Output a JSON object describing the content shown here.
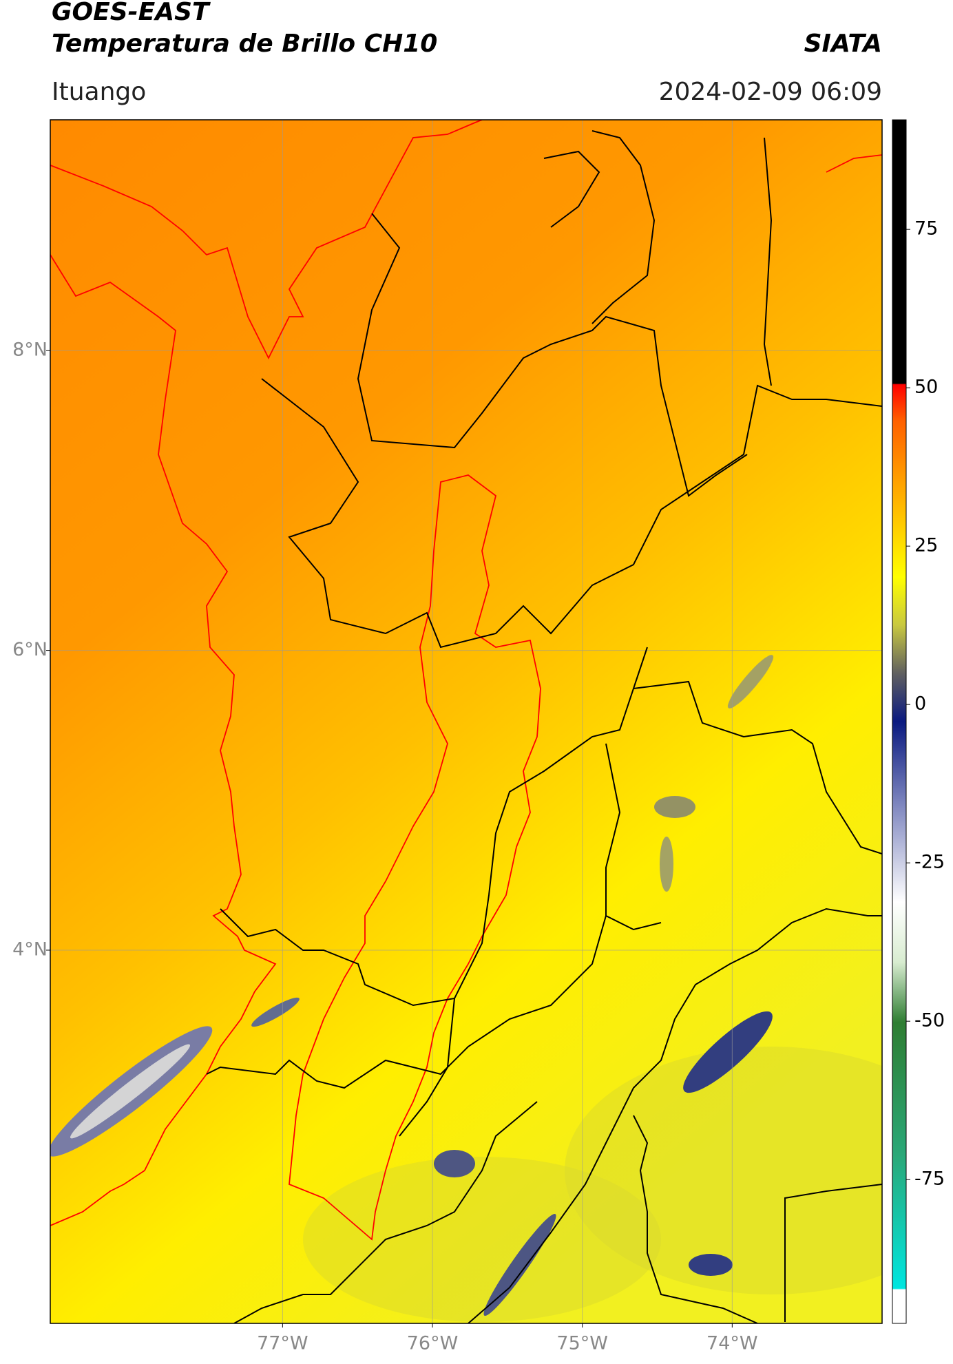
{
  "header": {
    "title_line_1": "GOES-EAST",
    "title_line_2": "Temperatura de Brillo CH10",
    "source": "SIATA",
    "location": "Ituango",
    "timestamp": "2024-02-09 06:09"
  },
  "map": {
    "xlim": [
      -78.55,
      -73.0
    ],
    "ylim": [
      1.51,
      9.54
    ],
    "xticks": [
      {
        "value": -77,
        "label": "77°W"
      },
      {
        "value": -76,
        "label": "76°W"
      },
      {
        "value": -75,
        "label": "75°W"
      },
      {
        "value": -74,
        "label": "74°W"
      }
    ],
    "yticks": [
      {
        "value": 8,
        "label": "8°N"
      },
      {
        "value": 6,
        "label": "6°N"
      },
      {
        "value": 4,
        "label": "4°N"
      }
    ],
    "grid": true
  },
  "colorbar": {
    "lim": [
      -97.7,
      92.3
    ],
    "ticks": [
      75,
      50,
      25,
      0,
      -25,
      -50,
      -75
    ]
  }
}
